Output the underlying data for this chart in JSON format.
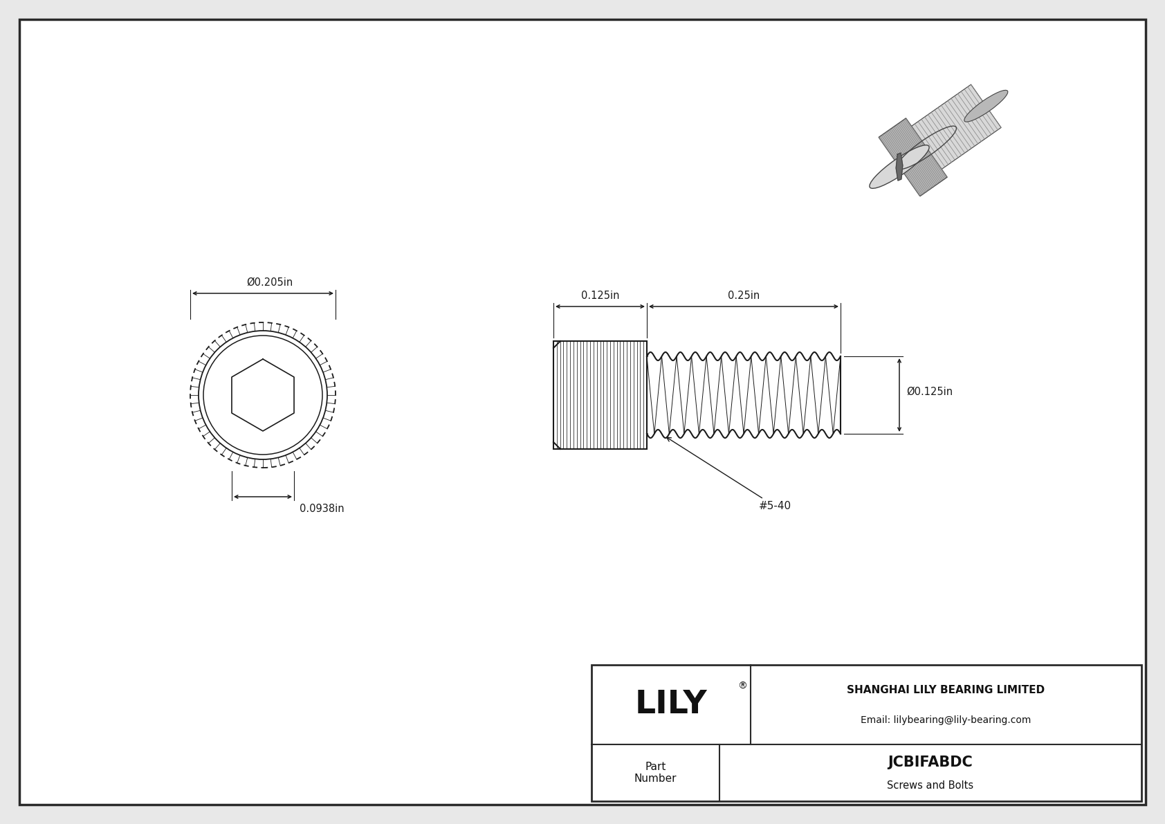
{
  "bg_color": "#e8e8e8",
  "drawing_bg": "#ffffff",
  "border_color": "#2a2a2a",
  "line_color": "#1a1a1a",
  "title": "JCBIFABDC",
  "subtitle": "Screws and Bolts",
  "company": "SHANGHAI LILY BEARING LIMITED",
  "email": "Email: lilybearing@lily-bearing.com",
  "lily_logo": "LILY",
  "part_number_label": "Part\nNumber",
  "dim_diameter_head": "Ø0.205in",
  "dim_hex_socket": "0.0938in",
  "dim_head_length": "0.125in",
  "dim_thread_length": "0.25in",
  "dim_thread_diameter": "Ø0.125in",
  "thread_label": "#5-40",
  "fig_width": 16.84,
  "fig_height": 11.91,
  "dpi": 100
}
